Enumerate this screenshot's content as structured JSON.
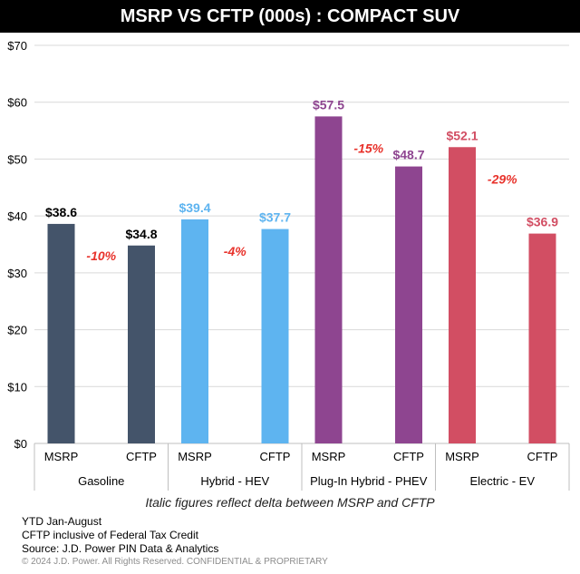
{
  "title": "MSRP VS CFTP (000s) : COMPACT SUV",
  "caption": "Italic figures reflect delta between MSRP and CFTP",
  "notes": {
    "line1": "YTD Jan-August",
    "line2": "CFTP inclusive of Federal Tax Credit",
    "line3": "Source: J.D. Power PIN Data & Analytics",
    "copyright": "© 2024 J.D. Power. All Rights Reserved. CONFIDENTIAL & PROPRIETARY"
  },
  "chart_data": {
    "type": "bar",
    "ylim": [
      0,
      70
    ],
    "yticks": [
      0,
      10,
      20,
      30,
      40,
      50,
      60,
      70
    ],
    "ytick_labels": [
      "$0",
      "$10",
      "$20",
      "$30",
      "$40",
      "$50",
      "$60",
      "$70"
    ],
    "grid": true,
    "groups": [
      {
        "name": "Gasoline",
        "color": "#44546a",
        "bars": [
          {
            "label": "MSRP",
            "value": 38.6,
            "data_label": "$38.6"
          },
          {
            "label": "CFTP",
            "value": 34.8,
            "data_label": "$34.8"
          }
        ],
        "delta": "-10%"
      },
      {
        "name": "Hybrid - HEV",
        "color": "#5eb4f0",
        "bars": [
          {
            "label": "MSRP",
            "value": 39.4,
            "data_label": "$39.4"
          },
          {
            "label": "CFTP",
            "value": 37.7,
            "data_label": "$37.7"
          }
        ],
        "delta": "-4%"
      },
      {
        "name": "Plug-In Hybrid - PHEV",
        "color": "#8e4590",
        "bars": [
          {
            "label": "MSRP",
            "value": 57.5,
            "data_label": "$57.5"
          },
          {
            "label": "CFTP",
            "value": 48.7,
            "data_label": "$48.7"
          }
        ],
        "delta": "-15%"
      },
      {
        "name": "Electric - EV",
        "color": "#d24e63",
        "bars": [
          {
            "label": "MSRP",
            "value": 52.1,
            "data_label": "$52.1"
          },
          {
            "label": "CFTP",
            "value": 36.9,
            "data_label": "$36.9"
          }
        ],
        "delta": "-29%"
      }
    ],
    "delta_color": "#e8322b",
    "label_colors": [
      "#000000",
      "#5eb4f0",
      "#8e4590",
      "#d24e63"
    ]
  }
}
